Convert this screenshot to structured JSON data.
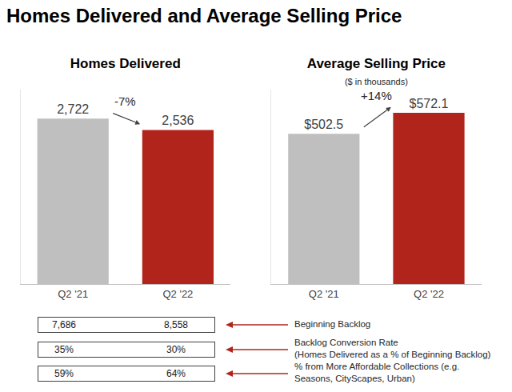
{
  "title": "Homes Delivered and Average Selling Price",
  "chart_data": [
    {
      "type": "bar",
      "title": "Homes Delivered",
      "categories": [
        "Q2 '21",
        "Q2 '22"
      ],
      "values": [
        2722,
        2536
      ],
      "value_labels": [
        "2,722",
        "2,536"
      ],
      "colors": [
        "#bfbfbf",
        "#b0241b"
      ],
      "data_labels": true,
      "tick_labels": "x",
      "grid": false,
      "ylim": [
        0,
        3200
      ],
      "yticks": [],
      "annotations": [
        {
          "text": "-7%"
        }
      ]
    },
    {
      "type": "bar",
      "title": "Average Selling Price",
      "subtitle": "($ in thousands)",
      "categories": [
        "Q2 '21",
        "Q2 '22"
      ],
      "values": [
        502.5,
        572.1
      ],
      "value_labels": [
        "$502.5",
        "$572.1"
      ],
      "colors": [
        "#bfbfbf",
        "#b0241b"
      ],
      "data_labels": true,
      "tick_labels": "x",
      "grid": false,
      "ylim": [
        0,
        650
      ],
      "yticks": [],
      "annotations": [
        {
          "text": "+14%"
        }
      ]
    }
  ],
  "table": {
    "rows": [
      {
        "values": [
          "7,686",
          "8,558"
        ],
        "label": [
          "Beginning Backlog"
        ]
      },
      {
        "values": [
          "35%",
          "30%"
        ],
        "label": [
          "Backlog Conversion Rate",
          "(Homes Delivered as a % of Beginning Backlog)"
        ]
      },
      {
        "values": [
          "59%",
          "64%"
        ],
        "label": [
          "% from More Affordable Collections (e.g.",
          "Seasons, CityScapes, Urban)"
        ]
      }
    ]
  }
}
